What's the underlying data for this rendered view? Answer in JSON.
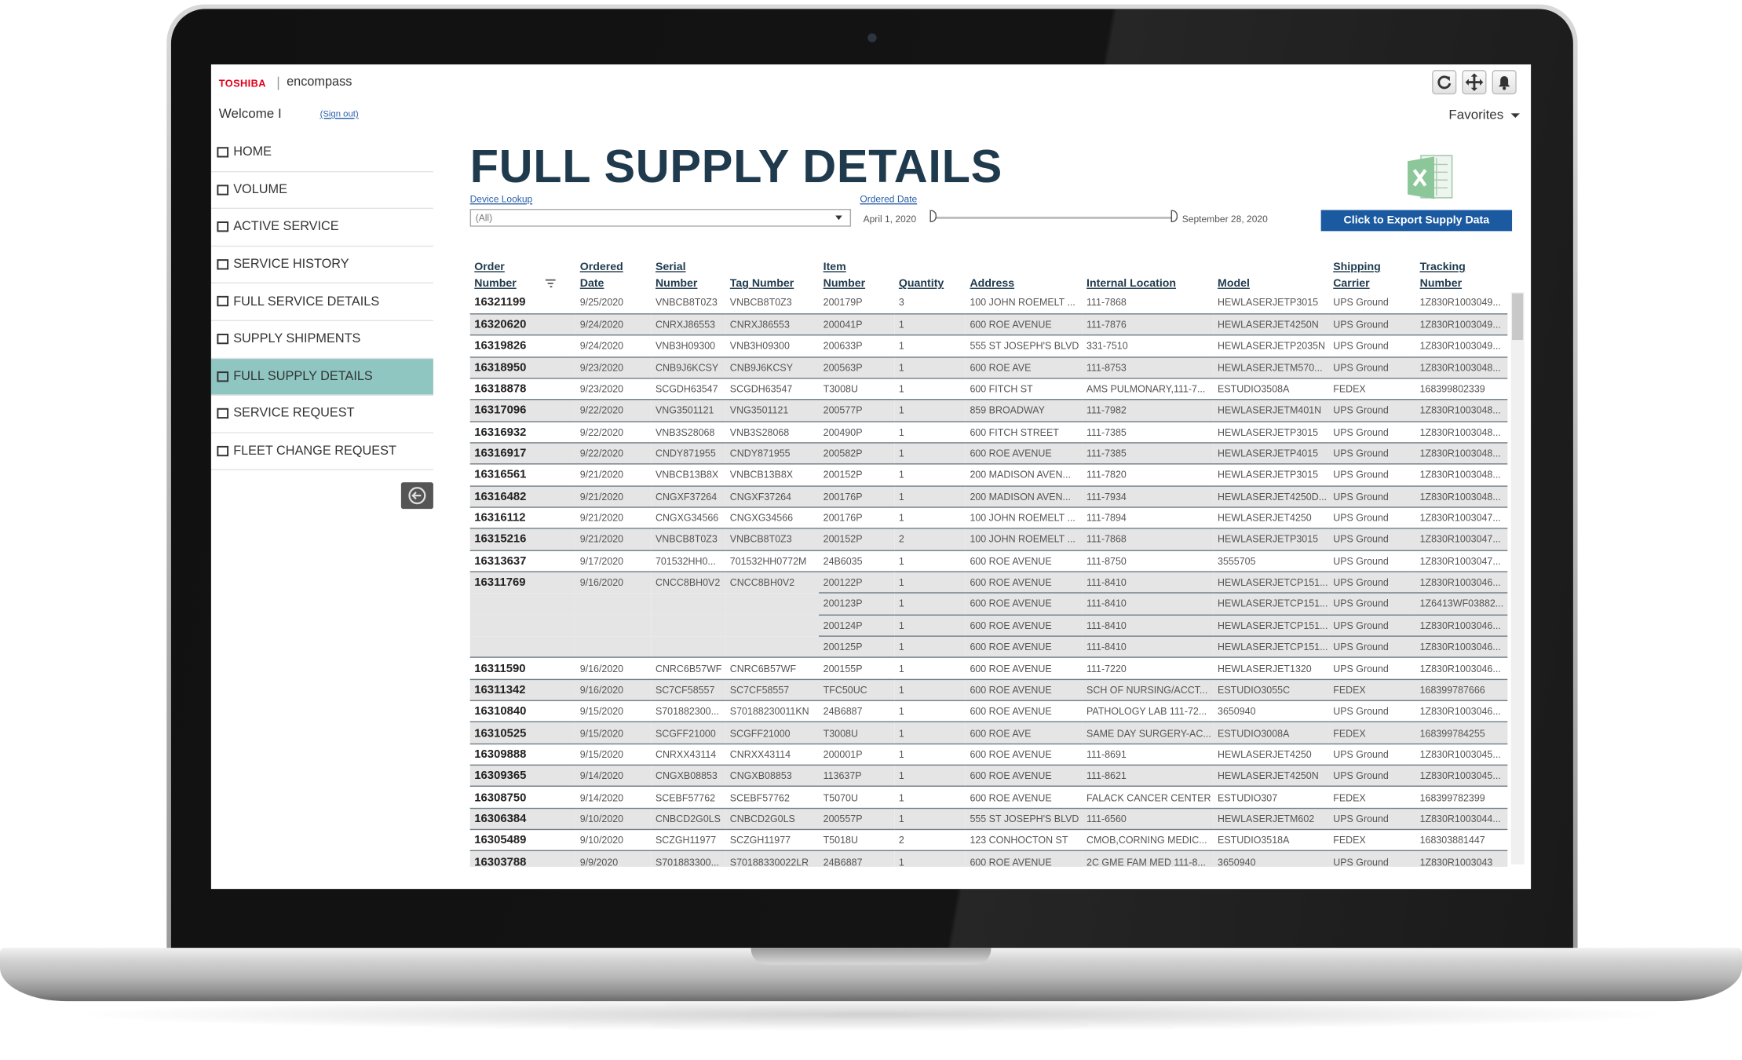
{
  "header": {
    "brand": "TOSHIBA",
    "product": "encompass",
    "welcome": "Welcome I",
    "sign_out": "(Sign out)",
    "favorites": "Favorites"
  },
  "nav": {
    "items": [
      "HOME",
      "VOLUME",
      "ACTIVE SERVICE",
      "SERVICE HISTORY",
      "FULL SERVICE DETAILS",
      "SUPPLY SHIPMENTS",
      "FULL SUPPLY DETAILS",
      "SERVICE REQUEST",
      "FLEET CHANGE REQUEST"
    ],
    "active": 6
  },
  "page": {
    "title": "FULL SUPPLY DETAILS",
    "device_lookup_label": "Device Lookup",
    "device_lookup_value": "(All)",
    "ordered_date_label": "Ordered Date",
    "date_from": "April 1, 2020",
    "date_to": "September 28, 2020",
    "export_button": "Click to Export Supply Data"
  },
  "table": {
    "columns": [
      [
        "Order",
        "Number"
      ],
      [
        "Ordered",
        "Date"
      ],
      [
        "Serial",
        "Number"
      ],
      [
        "Tag Number"
      ],
      [
        "Item",
        "Number"
      ],
      [
        "Quantity"
      ],
      [
        "Address"
      ],
      [
        "Internal Location"
      ],
      [
        "Model"
      ],
      [
        "Shipping",
        "Carrier"
      ],
      [
        "Tracking",
        "Number"
      ]
    ],
    "rows": [
      [
        "16321199",
        "9/25/2020",
        "VNBCB8T0Z3",
        "VNBCB8T0Z3",
        "200179P",
        "3",
        "100 JOHN ROEMELT ...",
        "111-7868",
        "HEWLASERJETP3015",
        "UPS Ground",
        "1Z830R1003049..."
      ],
      [
        "16320620",
        "9/24/2020",
        "CNRXJ86553",
        "CNRXJ86553",
        "200041P",
        "1",
        "600 ROE AVENUE",
        "111-7876",
        "HEWLASERJET4250N",
        "UPS Ground",
        "1Z830R1003049..."
      ],
      [
        "16319826",
        "9/24/2020",
        "VNB3H09300",
        "VNB3H09300",
        "200633P",
        "1",
        "555 ST JOSEPH'S BLVD",
        "331-7510",
        "HEWLASERJETP2035N",
        "UPS Ground",
        "1Z830R1003049..."
      ],
      [
        "16318950",
        "9/23/2020",
        "CNB9J6KCSY",
        "CNB9J6KCSY",
        "200563P",
        "1",
        "600 ROE AVE",
        "111-8753",
        "HEWLASERJETM570...",
        "UPS Ground",
        "1Z830R1003048..."
      ],
      [
        "16318878",
        "9/23/2020",
        "SCGDH63547",
        "SCGDH63547",
        "T3008U",
        "1",
        "600 FITCH ST",
        "AMS PULMONARY,111-7...",
        "ESTUDIO3508A",
        "FEDEX",
        "168399802339"
      ],
      [
        "16317096",
        "9/22/2020",
        "VNG3501121",
        "VNG3501121",
        "200577P",
        "1",
        "859 BROADWAY",
        "111-7982",
        "HEWLASERJETM401N",
        "UPS Ground",
        "1Z830R1003048..."
      ],
      [
        "16316932",
        "9/22/2020",
        "VNB3S28068",
        "VNB3S28068",
        "200490P",
        "1",
        "600 FITCH STREET",
        "111-7385",
        "HEWLASERJETP3015",
        "UPS Ground",
        "1Z830R1003048..."
      ],
      [
        "16316917",
        "9/22/2020",
        "CNDY871955",
        "CNDY871955",
        "200582P",
        "1",
        "600 ROE AVENUE",
        "111-7385",
        "HEWLASERJETP4015",
        "UPS Ground",
        "1Z830R1003048..."
      ],
      [
        "16316561",
        "9/21/2020",
        "VNBCB13B8X",
        "VNBCB13B8X",
        "200152P",
        "1",
        "200 MADISON AVEN...",
        "111-7820",
        "HEWLASERJETP3015",
        "UPS Ground",
        "1Z830R1003048..."
      ],
      [
        "16316482",
        "9/21/2020",
        "CNGXF37264",
        "CNGXF37264",
        "200176P",
        "1",
        "200 MADISON AVEN...",
        "111-7934",
        "HEWLASERJET4250D...",
        "UPS Ground",
        "1Z830R1003048..."
      ],
      [
        "16316112",
        "9/21/2020",
        "CNGXG34566",
        "CNGXG34566",
        "200176P",
        "1",
        "100 JOHN ROEMELT ...",
        "111-7894",
        "HEWLASERJET4250",
        "UPS Ground",
        "1Z830R1003047..."
      ],
      [
        "16315216",
        "9/21/2020",
        "VNBCB8T0Z3",
        "VNBCB8T0Z3",
        "200152P",
        "2",
        "100 JOHN ROEMELT ...",
        "111-7868",
        "HEWLASERJETP3015",
        "UPS Ground",
        "1Z830R1003047..."
      ],
      [
        "16313637",
        "9/17/2020",
        "701532HH0...",
        "701532HH0772M",
        "24B6035",
        "1",
        "600 ROE AVENUE",
        "111-8750",
        "3555705",
        "UPS Ground",
        "1Z830R1003047..."
      ],
      [
        "16311769",
        "9/16/2020",
        "CNCC8BH0V2",
        "CNCC8BH0V2",
        "200122P",
        "1",
        "600 ROE AVENUE",
        "111-8410",
        "HEWLASERJETCP151...",
        "UPS Ground",
        "1Z830R1003046..."
      ],
      [
        null,
        null,
        null,
        null,
        "200123P",
        "1",
        "600 ROE AVENUE",
        "111-8410",
        "HEWLASERJETCP151...",
        "UPS Ground",
        "1Z6413WF03882..."
      ],
      [
        null,
        null,
        null,
        null,
        "200124P",
        "1",
        "600 ROE AVENUE",
        "111-8410",
        "HEWLASERJETCP151...",
        "UPS Ground",
        "1Z830R1003046..."
      ],
      [
        null,
        null,
        null,
        null,
        "200125P",
        "1",
        "600 ROE AVENUE",
        "111-8410",
        "HEWLASERJETCP151...",
        "UPS Ground",
        "1Z830R1003046..."
      ],
      [
        "16311590",
        "9/16/2020",
        "CNRC6B57WF",
        "CNRC6B57WF",
        "200155P",
        "1",
        "600 ROE AVENUE",
        "111-7220",
        "HEWLASERJET1320",
        "UPS Ground",
        "1Z830R1003046..."
      ],
      [
        "16311342",
        "9/16/2020",
        "SC7CF58557",
        "SC7CF58557",
        "TFC50UC",
        "1",
        "600 ROE AVENUE",
        "SCH OF NURSING/ACCT...",
        "ESTUDIO3055C",
        "FEDEX",
        "168399787666"
      ],
      [
        "16310840",
        "9/15/2020",
        "S701882300...",
        "S70188230011KN",
        "24B6887",
        "1",
        "600 ROE AVENUE",
        "PATHOLOGY LAB 111-72...",
        "3650940",
        "UPS Ground",
        "1Z830R1003046..."
      ],
      [
        "16310525",
        "9/15/2020",
        "SCGFF21000",
        "SCGFF21000",
        "T3008U",
        "1",
        "600 ROE AVE",
        "SAME DAY SURGERY-AC...",
        "ESTUDIO3008A",
        "FEDEX",
        "168399784255"
      ],
      [
        "16309888",
        "9/15/2020",
        "CNRXX43114",
        "CNRXX43114",
        "200001P",
        "1",
        "600 ROE AVENUE",
        "111-8691",
        "HEWLASERJET4250",
        "UPS Ground",
        "1Z830R1003045..."
      ],
      [
        "16309365",
        "9/14/2020",
        "CNGXB08853",
        "CNGXB08853",
        "113637P",
        "1",
        "600 ROE AVENUE",
        "111-8621",
        "HEWLASERJET4250N",
        "UPS Ground",
        "1Z830R1003045..."
      ],
      [
        "16308750",
        "9/14/2020",
        "SCEBF57762",
        "SCEBF57762",
        "T5070U",
        "1",
        "600 ROE AVENUE",
        "FALACK CANCER CENTER",
        "ESTUDIO307",
        "FEDEX",
        "168399782399"
      ],
      [
        "16306384",
        "9/10/2020",
        "CNBCD2G0LS",
        "CNBCD2G0LS",
        "200557P",
        "1",
        "555 ST JOSEPH'S BLVD",
        "111-6560",
        "HEWLASERJETM602",
        "UPS Ground",
        "1Z830R1003044..."
      ],
      [
        "16305489",
        "9/10/2020",
        "SCZGH11977",
        "SCZGH11977",
        "T5018U",
        "2",
        "123 CONHOCTON ST",
        "CMOB,CORNING MEDIC...",
        "ESTUDIO3518A",
        "FEDEX",
        "168303881447"
      ],
      [
        "16303788",
        "9/9/2020",
        "S701883300...",
        "S70188330022LR",
        "24B6887",
        "1",
        "600 ROE AVENUE",
        "2C GME FAM MED 111-8...",
        "3650940",
        "UPS Ground",
        "1Z830R1003043"
      ]
    ]
  }
}
